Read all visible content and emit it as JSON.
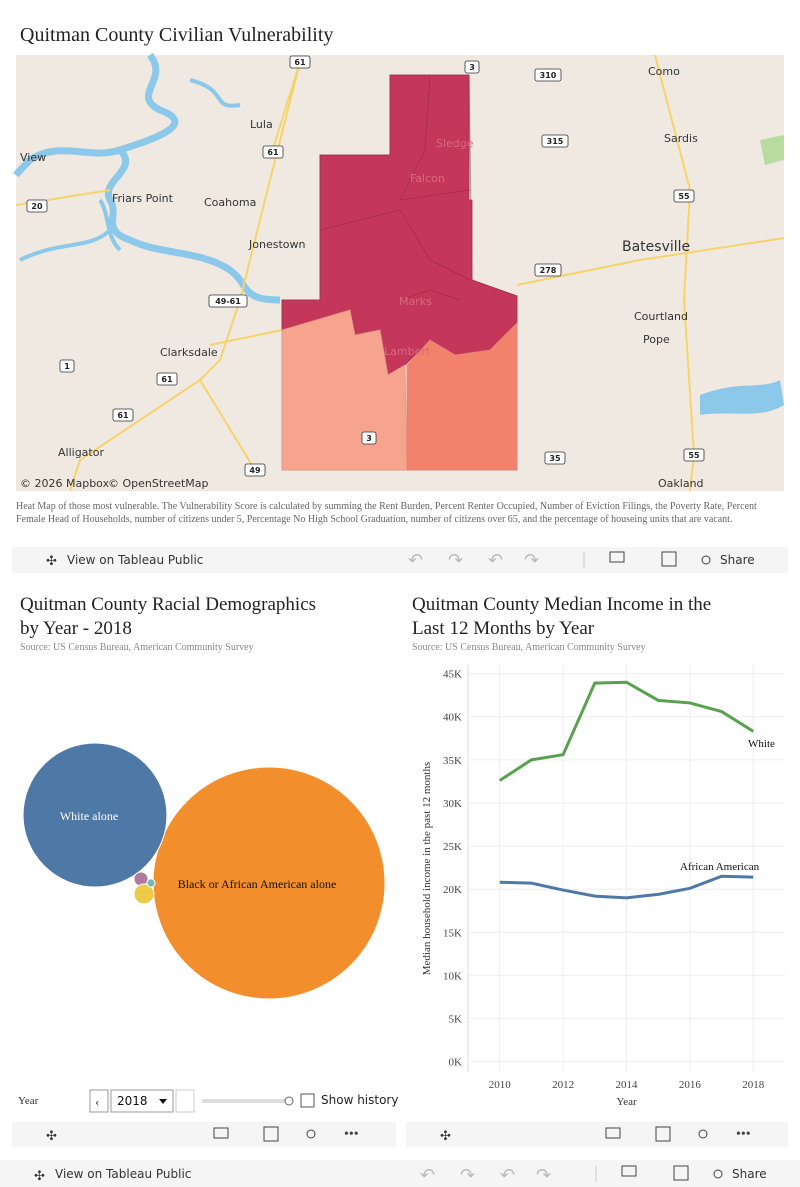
{
  "header": {
    "title": "Quitman County Civilian Vulnerability"
  },
  "map": {
    "labels": [
      "Lula",
      "View",
      "Friars Point",
      "Coahoma",
      "Jonestown",
      "Clarksdale",
      "Alligator",
      "Sledge",
      "Falcon",
      "Marks",
      "Lambert",
      "Como",
      "Sardis",
      "Batesville",
      "Courtland",
      "Pope",
      "Oakland"
    ],
    "shields": [
      "61",
      "3",
      "310",
      "315",
      "61",
      "55",
      "20",
      "278",
      "49-61",
      "1",
      "61",
      "61",
      "3",
      "55",
      "35",
      "49"
    ],
    "attribution": [
      "© 2026 Mapbox",
      "© OpenStreetMap"
    ]
  },
  "description": "Heat Map of those most vulnerable. The Vulnerability Score is calculated by summing the Rent Burden, Percent Renter Occupied, Number of Eviction Filings, the Poverty Rate, Percent Female Head of Households, number of citizens under 5, Percentage No High School Graduation, number of citizens over 65, and the percentage of houseing units that are vacant.",
  "toolbar": {
    "view": "View on Tableau Public",
    "share": "Share"
  },
  "controls": {
    "label": "Year",
    "selected": "2018",
    "history": "Show history"
  },
  "chart_data": [
    {
      "type": "bubble",
      "title": "Quitman County Racial Demographics by Year - 2018",
      "subtitle": "Source: US Census Bureau, American Community Survey",
      "categories": [
        "Black or African American alone",
        "White alone",
        null,
        null,
        null
      ],
      "values": [
        4860,
        1870,
        18,
        36,
        6
      ],
      "colors": [
        "#f28e2b",
        "#4e79a7",
        "#b07aa1",
        "#edc948",
        "#76b7b2"
      ]
    },
    {
      "type": "line",
      "title": "Quitman County Median Income in the Last 12 Months by Year",
      "subtitle": "Source: US Census Bureau, American Community Survey",
      "x_label": "Year",
      "y_label": "Median household income in the past 12 months",
      "x": [
        2010,
        2011,
        2012,
        2013,
        2014,
        2015,
        2016,
        2017,
        2018
      ],
      "series": [
        {
          "name": "White",
          "color": "#59a14f",
          "values": [
            32600,
            35000,
            35600,
            43900,
            44000,
            41900,
            41600,
            40600,
            38300
          ]
        },
        {
          "name": "African American",
          "color": "#4e79a7",
          "values": [
            20800,
            20700,
            19900,
            19200,
            19000,
            19400,
            20100,
            21500,
            21400
          ]
        }
      ],
      "xlim": [
        2009,
        2019
      ],
      "xticks": [
        2010,
        2012,
        2014,
        2016,
        2018
      ],
      "ylim": [
        -1200,
        46000
      ],
      "yticks": [
        {
          "value": 0,
          "label": "0K"
        },
        {
          "value": 5000,
          "label": "5K"
        },
        {
          "value": 10000,
          "label": "10K"
        },
        {
          "value": 15000,
          "label": "15K"
        },
        {
          "value": 20000,
          "label": "20K"
        },
        {
          "value": 25000,
          "label": "25K"
        },
        {
          "value": 30000,
          "label": "30K"
        },
        {
          "value": 35000,
          "label": "35K"
        },
        {
          "value": 40000,
          "label": "40K"
        },
        {
          "value": 45000,
          "label": "45K"
        }
      ],
      "grid": true
    }
  ]
}
